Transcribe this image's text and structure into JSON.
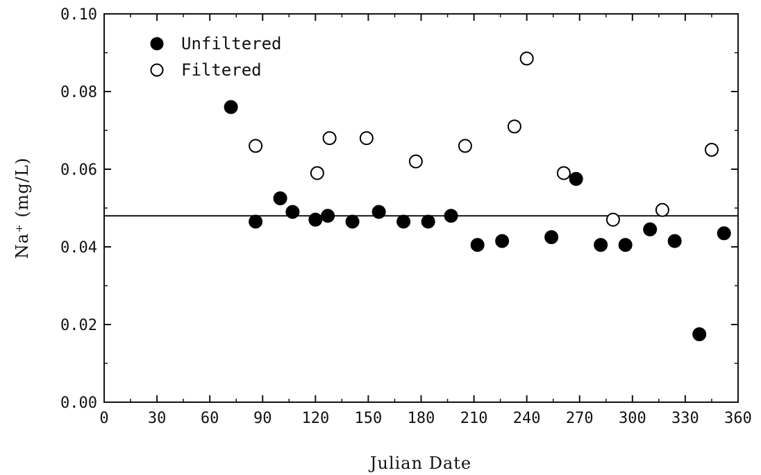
{
  "chart_data": {
    "type": "scatter",
    "xlabel": "Julian Date",
    "ylabel": "Na⁺ (mg/L)",
    "xlim": [
      0,
      360
    ],
    "ylim": [
      0,
      0.1
    ],
    "x_ticks": [
      0,
      30,
      60,
      90,
      120,
      150,
      180,
      210,
      240,
      270,
      300,
      330,
      360
    ],
    "x_tick_labels": [
      "0",
      "30",
      "60",
      "90",
      "120",
      "150",
      "180",
      "210",
      "240",
      "270",
      "300",
      "330",
      "360"
    ],
    "y_ticks": [
      0,
      0.02,
      0.04,
      0.06,
      0.08,
      0.1
    ],
    "y_tick_labels": [
      "0.00",
      "0.02",
      "0.04",
      "0.06",
      "0.08",
      "0.10"
    ],
    "grid": false,
    "legend": "top-left",
    "reference_line": {
      "y": 0.048
    },
    "series": [
      {
        "name": "Unfiltered",
        "marker": "filled-circle",
        "color": "#000000",
        "points": [
          [
            72,
            0.076
          ],
          [
            86,
            0.0465
          ],
          [
            100,
            0.0525
          ],
          [
            107,
            0.049
          ],
          [
            120,
            0.047
          ],
          [
            127,
            0.048
          ],
          [
            141,
            0.0465
          ],
          [
            156,
            0.049
          ],
          [
            170,
            0.0465
          ],
          [
            184,
            0.0465
          ],
          [
            197,
            0.048
          ],
          [
            212,
            0.0405
          ],
          [
            226,
            0.0415
          ],
          [
            254,
            0.0425
          ],
          [
            268,
            0.0575
          ],
          [
            282,
            0.0405
          ],
          [
            296,
            0.0405
          ],
          [
            310,
            0.0445
          ],
          [
            324,
            0.0415
          ],
          [
            338,
            0.0175
          ],
          [
            352,
            0.0435
          ]
        ]
      },
      {
        "name": "Filtered",
        "marker": "open-circle",
        "color": "#000000",
        "points": [
          [
            86,
            0.066
          ],
          [
            121,
            0.059
          ],
          [
            128,
            0.068
          ],
          [
            149,
            0.068
          ],
          [
            177,
            0.062
          ],
          [
            205,
            0.066
          ],
          [
            233,
            0.071
          ],
          [
            240,
            0.0885
          ],
          [
            261,
            0.059
          ],
          [
            289,
            0.047
          ],
          [
            317,
            0.0495
          ],
          [
            345,
            0.065
          ]
        ]
      }
    ]
  }
}
